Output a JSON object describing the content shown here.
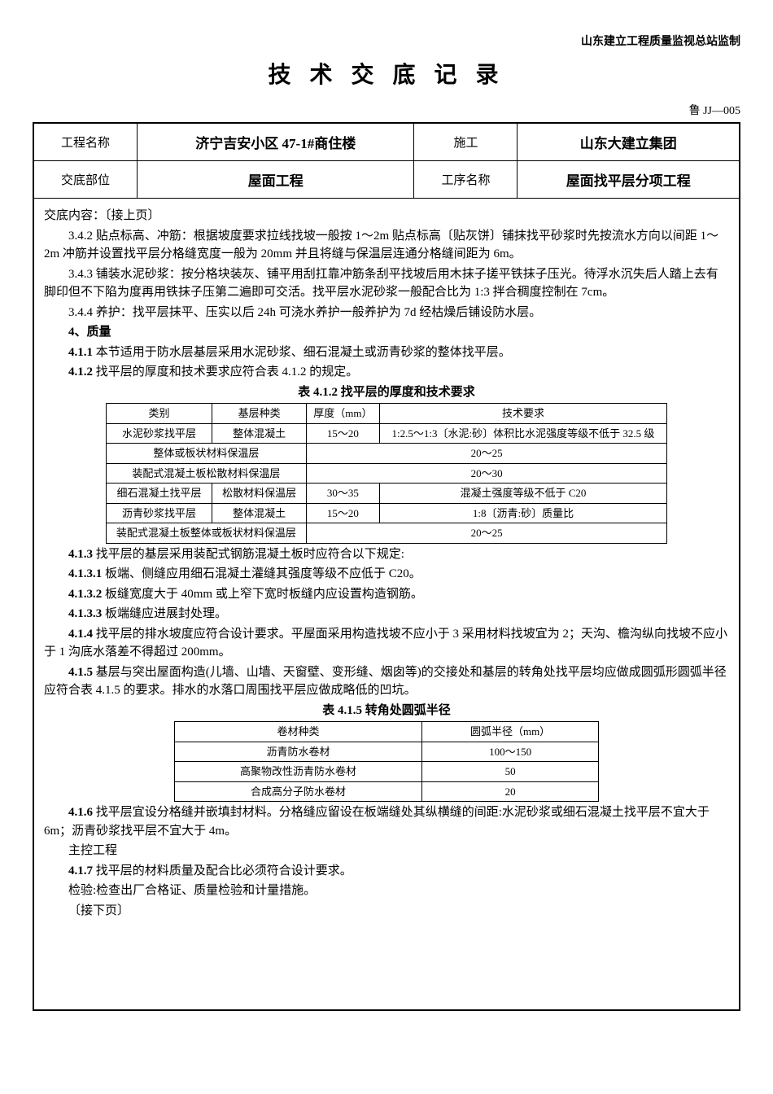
{
  "header": {
    "org": "山东建立工程质量监视总站监制",
    "title": "技 术 交 底 记 录",
    "doc_code": "鲁 JJ—005"
  },
  "info": {
    "project_name_label": "工程名称",
    "project_name": "济宁吉安小区 47-1#商住楼",
    "construction_label": "施工",
    "construction": "山东大建立集团",
    "position_label": "交底部位",
    "position": "屋面工程",
    "process_label": "工序名称",
    "process": "屋面找平层分项工程"
  },
  "content": {
    "lead": "交底内容：〔接上页〕",
    "p_3_4_2": "3.4.2 贴点标高、冲筋：根据坡度要求拉线找坡一般按 1～2m 贴点标高〔贴灰饼〕铺抹找平砂浆时先按流水方向以间距 1～2m 冲筋并设置找平层分格缝宽度一般为 20mm 并且将缝与保温层连通分格缝间距为 6m。",
    "p_3_4_3": "3.4.3 铺装水泥砂浆：按分格块装灰、铺平用刮扛靠冲筋条刮平找坡后用木抹子搓平铁抹子压光。待浮水沉失后人踏上去有脚印但不下陷为度再用铁抹子压第二遍即可交活。找平层水泥砂浆一般配合比为 1:3 拌合稠度控制在 7cm。",
    "p_3_4_4": "3.4.4 养护：找平层抹平、压实以后 24h 可浇水养护一般养护为 7d 经枯燥后铺设防水层。",
    "p_4": "4、质量",
    "p_4_1_1": "4.1.1 本节适用于防水层基层采用水泥砂浆、细石混凝土或沥青砂浆的整体找平层。",
    "p_4_1_2": "4.1.2 找平层的厚度和技术要求应符合表 4.1.2 的规定。",
    "table1_caption": "表 4.1.2 找平层的厚度和技术要求",
    "table1": {
      "headers": [
        "类别",
        "基层种类",
        "厚度（mm）",
        "技术要求"
      ],
      "rows": [
        [
          "水泥砂浆找平层",
          "整体混凝土",
          "15～20",
          "1:2.5～1:3〔水泥:砂〕体积比水泥强度等级不低于 32.5 级"
        ],
        [
          "",
          "整体或板状材料保温层",
          "20～25",
          ""
        ],
        [
          "",
          "装配式混凝土板松散材料保温层",
          "20～30",
          ""
        ],
        [
          "细石混凝土找平层",
          "松散材料保温层",
          "30～35",
          "混凝土强度等级不低于 C20"
        ],
        [
          "沥青砂浆找平层",
          "整体混凝土",
          "15～20",
          "1:8〔沥青:砂〕质量比"
        ],
        [
          "",
          "装配式混凝土板整体或板状材料保温层",
          "20～25",
          ""
        ]
      ]
    },
    "p_4_1_3": "4.1.3 找平层的基层采用装配式钢筋混凝土板时应符合以下规定:",
    "p_4_1_3_1": "4.1.3.1 板端、侧缝应用细石混凝土灌缝其强度等级不应低于 C20。",
    "p_4_1_3_2": "4.1.3.2 板缝宽度大于 40mm 或上窄下宽时板缝内应设置构造钢筋。",
    "p_4_1_3_3": "4.1.3.3 板端缝应进展封处理。",
    "p_4_1_4": "4.1.4 找平层的排水坡度应符合设计要求。平屋面采用构造找坡不应小于 3 采用材料找坡宜为 2；天沟、檐沟纵向找坡不应小于 1 沟底水落差不得超过 200mm。",
    "p_4_1_5": "4.1.5 基层与突出屋面构造(儿墙、山墙、天窗壁、变形缝、烟囱等)的交接处和基层的转角处找平层均应做成圆弧形圆弧半径应符合表 4.1.5 的要求。排水的水落口周围找平层应做成略低的凹坑。",
    "table2_caption": "表 4.1.5 转角处圆弧半径",
    "table2": {
      "headers": [
        "卷材种类",
        "圆弧半径（mm）"
      ],
      "rows": [
        [
          "沥青防水卷材",
          "100～150"
        ],
        [
          "高聚物改性沥青防水卷材",
          "50"
        ],
        [
          "合成高分子防水卷材",
          "20"
        ]
      ]
    },
    "p_4_1_6": "4.1.6 找平层宜设分格缝并嵌填封材料。分格缝应留设在板端缝处其纵横缝的间距:水泥砂浆或细石混凝土找平层不宜大于 6m；沥青砂浆找平层不宜大于 4m。",
    "p_main": "主控工程",
    "p_4_1_7": "4.1.7 找平层的材料质量及配合比必须符合设计要求。",
    "p_check": "检验:检查出厂合格证、质量检验和计量措施。",
    "p_next": "〔接下页〕"
  }
}
